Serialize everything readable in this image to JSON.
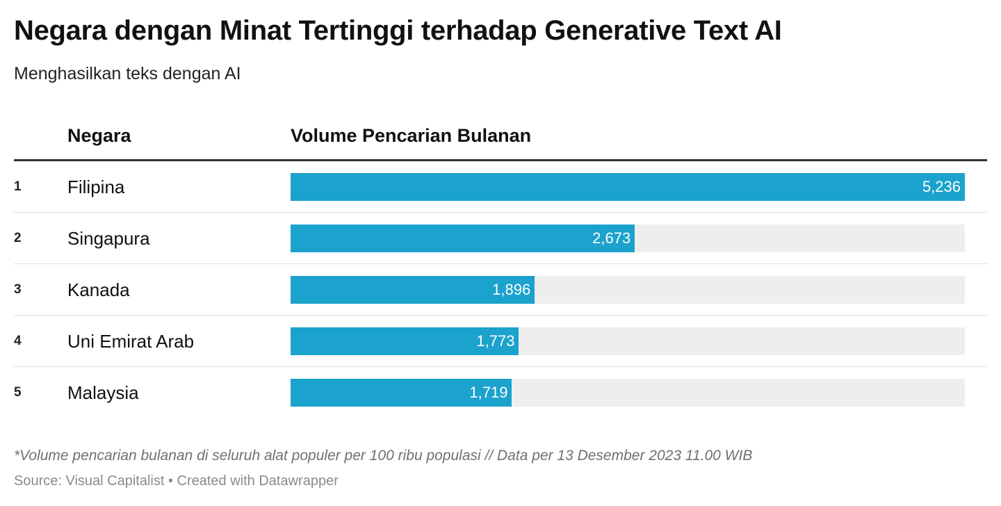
{
  "chart_data": {
    "type": "bar",
    "title": "Negara dengan Minat Tertinggi terhadap Generative Text AI",
    "subtitle": "Menghasilkan teks dengan AI",
    "columns": {
      "country": "Negara",
      "value": "Volume Pencarian Bulanan"
    },
    "categories": [
      "Filipina",
      "Singapura",
      "Kanada",
      "Uni Emirat Arab",
      "Malaysia"
    ],
    "values": [
      5236,
      2673,
      1896,
      1773,
      1719
    ],
    "rows": [
      {
        "rank": "1",
        "country": "Filipina",
        "value": 5236,
        "label": "5,236"
      },
      {
        "rank": "2",
        "country": "Singapura",
        "value": 2673,
        "label": "2,673"
      },
      {
        "rank": "3",
        "country": "Kanada",
        "value": 1896,
        "label": "1,896"
      },
      {
        "rank": "4",
        "country": "Uni Emirat Arab",
        "value": 1773,
        "label": "1,773"
      },
      {
        "rank": "5",
        "country": "Malaysia",
        "value": 1719,
        "label": "1,719"
      }
    ],
    "xlim": [
      0,
      5236
    ],
    "bar_color": "#1ba2cd",
    "track_color": "#eeeeee",
    "note": "*Volume pencarian bulanan di seluruh alat populer per 100 ribu populasi // Data per 13 Desember 2023 11.00 WIB",
    "source": "Source: Visual Capitalist • Created with Datawrapper"
  }
}
